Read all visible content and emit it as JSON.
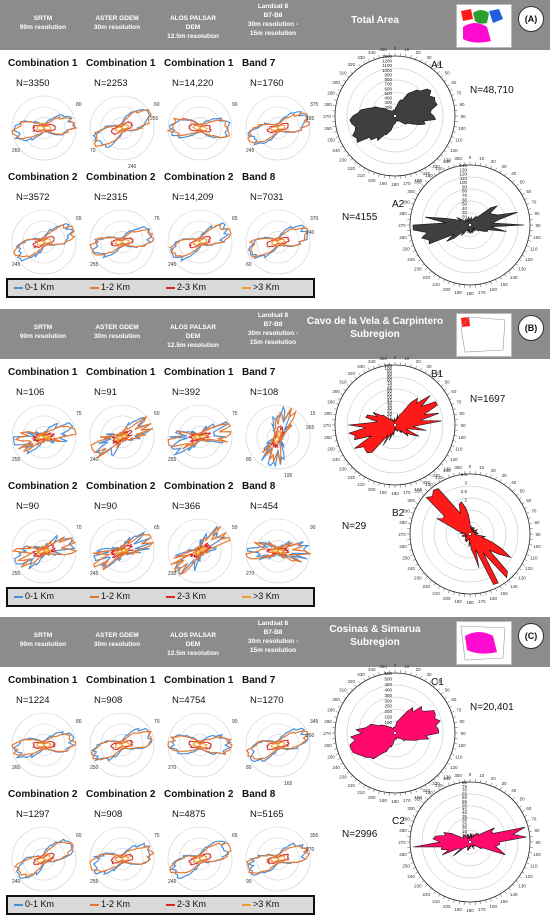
{
  "header": {
    "cols": [
      {
        "lines": [
          "SRTM",
          "90m resolution"
        ]
      },
      {
        "lines": [
          "ASTER GDEM",
          "30m resolution"
        ]
      },
      {
        "lines": [
          "ALOS PALSAR",
          "DEM",
          "12.5m resolution"
        ]
      },
      {
        "lines": [
          "Landsat 8",
          "B7-B8",
          "30m resolution -",
          "15m resolution"
        ]
      }
    ]
  },
  "legend": [
    "0-1 Km",
    "1-2 Km",
    "2-3 Km",
    ">3 Km"
  ],
  "colors": {
    "c01": "#4a90d9",
    "c12": "#e8772e",
    "c23": "#d62728",
    "c3": "#f0a030",
    "gray": "#3f3f3f",
    "red": "#ff1a1a",
    "pink": "#ff0a6c"
  },
  "panels": [
    {
      "letter": "(A)",
      "region": [
        "Total Area"
      ],
      "big": [
        {
          "label": "A1",
          "n": "N=48,710"
        },
        {
          "label": "A2",
          "n": "N=4155"
        }
      ],
      "rows": [
        [
          {
            "combo": "Combination 1",
            "n": "N=3350",
            "ticks": [
              "80",
              "260"
            ]
          },
          {
            "combo": "Combination 1",
            "n": "N=2253",
            "ticks": [
              "60",
              "70",
              "250",
              "240"
            ]
          },
          {
            "combo": "Combination 1",
            "n": "N=14,220",
            "ticks": [
              "90"
            ]
          },
          {
            "combo": "Band 7",
            "n": "N=1760",
            "ticks": [
              "375",
              "245",
              "195"
            ]
          }
        ],
        [
          {
            "combo": "Combination 2",
            "n": "N=3572",
            "ticks": [
              "65",
              "245"
            ]
          },
          {
            "combo": "Combination 2",
            "n": "N=2315",
            "ticks": [
              "75",
              "255"
            ]
          },
          {
            "combo": "Combination 2",
            "n": "N=14,209",
            "ticks": [
              "65",
              "245"
            ]
          },
          {
            "combo": "Band 8",
            "n": "N=7031",
            "ticks": [
              "370",
              "60",
              "240",
              "190"
            ]
          }
        ]
      ]
    },
    {
      "letter": "(B)",
      "region": [
        "Cavo de la Vela & Carpintero",
        "Subregion"
      ],
      "big": [
        {
          "label": "B1",
          "n": "N=1697"
        },
        {
          "label": "B2",
          "n": "N=29"
        }
      ],
      "rows": [
        [
          {
            "combo": "Combination 1",
            "n": "N=106",
            "ticks": [
              "75",
              "255"
            ]
          },
          {
            "combo": "Combination 1",
            "n": "N=91",
            "ticks": [
              "60",
              "240"
            ]
          },
          {
            "combo": "Combination 1",
            "n": "N=392",
            "ticks": [
              "75",
              "255"
            ]
          },
          {
            "combo": "Band 7",
            "n": "N=108",
            "ticks": [
              "15",
              "85",
              "265",
              "195"
            ]
          }
        ],
        [
          {
            "combo": "Combination 2",
            "n": "N=90",
            "ticks": [
              "70",
              "250"
            ]
          },
          {
            "combo": "Combination 2",
            "n": "N=90",
            "ticks": [
              "65",
              "245"
            ]
          },
          {
            "combo": "Combination 2",
            "n": "N=366",
            "ticks": [
              "50",
              "230"
            ]
          },
          {
            "combo": "Band 8",
            "n": "N=454",
            "ticks": [
              "90",
              "270"
            ]
          }
        ]
      ]
    },
    {
      "letter": "(C)",
      "region": [
        "Cosinas & Simarua",
        "Subregion"
      ],
      "big": [
        {
          "label": "C1",
          "n": "N=20,401"
        },
        {
          "label": "C2",
          "n": "N=2996"
        }
      ],
      "rows": [
        [
          {
            "combo": "Combination 1",
            "n": "N=1224",
            "ticks": [
              "80",
              "260"
            ]
          },
          {
            "combo": "Combination 1",
            "n": "N=908",
            "ticks": [
              "70",
              "250"
            ]
          },
          {
            "combo": "Combination 1",
            "n": "N=4754",
            "ticks": [
              "90",
              "270"
            ]
          },
          {
            "combo": "Band 7",
            "n": "N=1270",
            "ticks": [
              "345",
              "80",
              "260",
              "165"
            ]
          }
        ],
        [
          {
            "combo": "Combination 2",
            "n": "N=1297",
            "ticks": [
              "60",
              "240"
            ]
          },
          {
            "combo": "Combination 2",
            "n": "N=908",
            "ticks": [
              "75",
              "255"
            ]
          },
          {
            "combo": "Combination 2",
            "n": "N=4875",
            "ticks": [
              "65",
              "245"
            ]
          },
          {
            "combo": "Band 8",
            "n": "N=5165",
            "ticks": [
              "355",
              "90",
              "270",
              "175"
            ]
          }
        ]
      ]
    }
  ],
  "chart_data": [
    {
      "type": "rose",
      "panel": "A",
      "chart": "A1",
      "n": "N=48,710",
      "dominant_azimuth_deg": 70,
      "radial_ticks": [
        0,
        100,
        200,
        300,
        400,
        500,
        600,
        700,
        800,
        900,
        1000,
        1100,
        1200,
        1300
      ],
      "color": "#3f3f3f"
    },
    {
      "type": "rose",
      "panel": "A",
      "chart": "A2",
      "n": "N=4155",
      "dominant_azimuth_deg": 80,
      "radial_ticks": [
        0,
        10,
        20,
        30,
        40,
        50,
        60,
        70,
        80,
        90,
        100,
        110,
        120,
        130,
        140
      ],
      "color": "#3f3f3f"
    },
    {
      "type": "rose",
      "panel": "B",
      "chart": "B1",
      "n": "N=1697",
      "dominant_azimuth_deg": 75,
      "radial_ticks": [
        0,
        5,
        10,
        15,
        20,
        25,
        30,
        35,
        40,
        45,
        50,
        55,
        60,
        65,
        70,
        75,
        80,
        85,
        90,
        95,
        100,
        105
      ],
      "color": "#ff1a1a"
    },
    {
      "type": "rose",
      "panel": "B",
      "chart": "B2",
      "n": "N=29",
      "dominant_azimuth_deg": 140,
      "radial_ticks": [
        0,
        0.5,
        1,
        1.5,
        2,
        2.5,
        3,
        3.5
      ],
      "color": "#ff1a1a"
    },
    {
      "type": "rose",
      "panel": "C",
      "chart": "C1",
      "n": "N=20,401",
      "dominant_azimuth_deg": 70,
      "radial_ticks": [
        0,
        50,
        100,
        150,
        200,
        250,
        300,
        350,
        400,
        450,
        500,
        550
      ],
      "color": "#ff0a6c"
    },
    {
      "type": "rose",
      "panel": "C",
      "chart": "C2",
      "n": "N=2996",
      "dominant_azimuth_deg": 85,
      "radial_ticks": [
        0,
        5,
        10,
        15,
        20,
        25,
        30,
        35,
        40,
        45,
        50,
        55,
        60,
        65,
        70,
        75,
        80
      ],
      "color": "#ff0a6c"
    }
  ]
}
